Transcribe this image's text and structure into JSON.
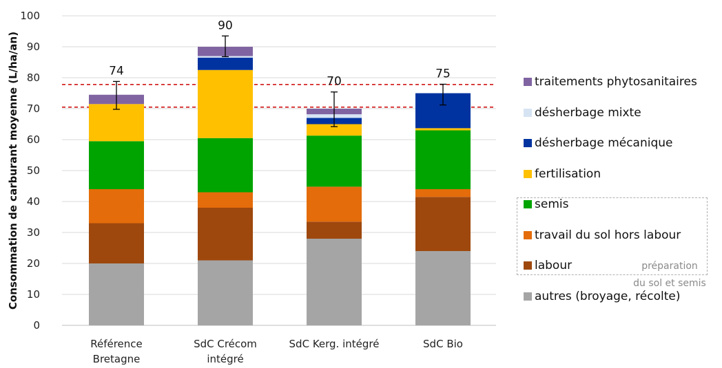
{
  "chart_data": {
    "type": "bar",
    "stacked": true,
    "categories": [
      "Référence\nBretagne",
      "SdC Crécom\nintégré",
      "SdC Kerg. intégré",
      "SdC Bio"
    ],
    "ylabel": "Consommation de carburant moyenne (L/ha/an)",
    "xlabel": "",
    "ylim": [
      0,
      100
    ],
    "yticks": [
      0,
      10,
      20,
      30,
      40,
      50,
      60,
      70,
      80,
      90,
      100
    ],
    "grid": true,
    "series": [
      {
        "name": "autres (broyage, récolte)",
        "color": "#a5a5a5",
        "values": [
          20,
          21,
          28,
          24
        ]
      },
      {
        "name": "labour",
        "color": "#9e480e",
        "values": [
          13,
          17,
          5.5,
          17.5
        ]
      },
      {
        "name": "travail du sol hors labour",
        "color": "#e46c0a",
        "values": [
          11,
          5,
          11.3,
          2.5
        ]
      },
      {
        "name": "semis",
        "color": "#00a400",
        "values": [
          15.5,
          17.5,
          16.5,
          19
        ]
      },
      {
        "name": "fertilisation",
        "color": "#ffc000",
        "values": [
          12,
          22,
          3.7,
          0.7
        ]
      },
      {
        "name": "désherbage mécanique",
        "color": "#0033a0",
        "values": [
          0,
          4,
          2,
          11.3
        ]
      },
      {
        "name": "désherbage mixte",
        "color": "#d6e3f3",
        "values": [
          0,
          0.5,
          1.2,
          0
        ]
      },
      {
        "name": "traitements phytosanitaires",
        "color": "#8064a2",
        "values": [
          3,
          3,
          1.8,
          0
        ]
      }
    ],
    "totals": [
      "74",
      "90",
      "70",
      "75"
    ],
    "error_bars": [
      [
        69.8,
        78.8
      ],
      [
        86.8,
        93.5
      ],
      [
        64.2,
        75.4
      ],
      [
        71.2,
        77.9
      ]
    ],
    "reference_lines": [
      77.8,
      70.5
    ],
    "reference_line_color": "#cc0000",
    "legend_position": "right",
    "annotation": "préparation\ndu sol et semis"
  }
}
